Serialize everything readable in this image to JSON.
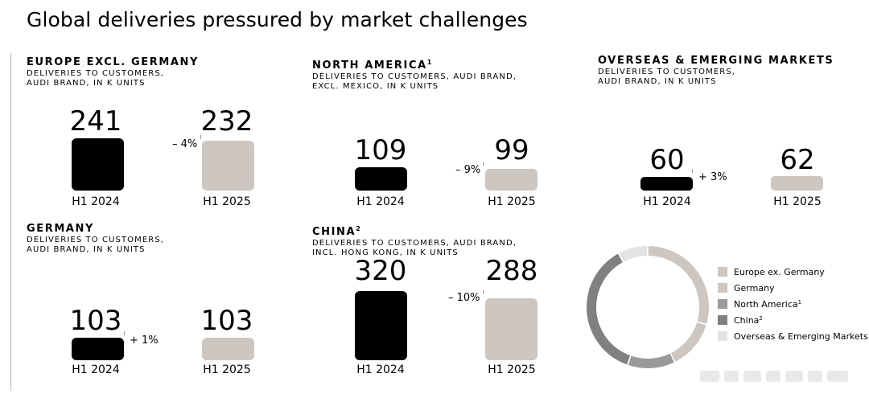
{
  "page": {
    "title": "Global deliveries pressured by market challenges"
  },
  "chart_data": [
    {
      "type": "bar",
      "id": "europe",
      "title": "EUROPE EXCL. GERMANY",
      "footnote": "",
      "subtitle": "DELIVERIES TO CUSTOMERS,\nAUDI BRAND, IN K UNITS",
      "categories": [
        "H1 2024",
        "H1 2025"
      ],
      "values": [
        241,
        232
      ],
      "change": "– 4%"
    },
    {
      "type": "bar",
      "id": "north_america",
      "title": "NORTH AMERICA",
      "footnote": "1",
      "subtitle": "DELIVERIES TO CUSTOMERS, AUDI BRAND,\nEXCL. MEXICO,  IN K UNITS",
      "categories": [
        "H1 2024",
        "H1 2025"
      ],
      "values": [
        109,
        99
      ],
      "change": "– 9%"
    },
    {
      "type": "bar",
      "id": "overseas",
      "title": "OVERSEAS & EMERGING MARKETS",
      "footnote": "",
      "subtitle": "DELIVERIES TO CUSTOMERS,\nAUDI BRAND, IN K UNITS",
      "categories": [
        "H1 2024",
        "H1 2025"
      ],
      "values": [
        60,
        62
      ],
      "change": "+ 3%"
    },
    {
      "type": "bar",
      "id": "germany",
      "title": "GERMANY",
      "footnote": "",
      "subtitle": "DELIVERIES TO CUSTOMERS,\nAUDI BRAND, IN K UNITS",
      "categories": [
        "H1 2024",
        "H1 2025"
      ],
      "values": [
        103,
        103
      ],
      "change": "+ 1%"
    },
    {
      "type": "bar",
      "id": "china",
      "title": "CHINA",
      "footnote": "2",
      "subtitle": "DELIVERIES TO CUSTOMERS, AUDI BRAND,\nINCL. HONG KONG, IN K UNITS",
      "categories": [
        "H1 2024",
        "H1 2025"
      ],
      "values": [
        320,
        288
      ],
      "change": "– 10%"
    },
    {
      "type": "pie",
      "id": "share_donut",
      "labels": [
        "Europe ex. Germany",
        "Germany",
        "North America",
        "China",
        "Overseas & Emerging Markets"
      ],
      "label_footnotes": [
        "",
        "",
        "1",
        "2",
        ""
      ],
      "values": [
        232,
        103,
        99,
        288,
        62
      ],
      "colors": [
        "#cdc6c1",
        "#cdc6c1",
        "#9a9a9a",
        "#808080",
        "#e3e3e3"
      ]
    }
  ],
  "colors": {
    "prev": "#000000",
    "cur": "#cdc6c1"
  }
}
